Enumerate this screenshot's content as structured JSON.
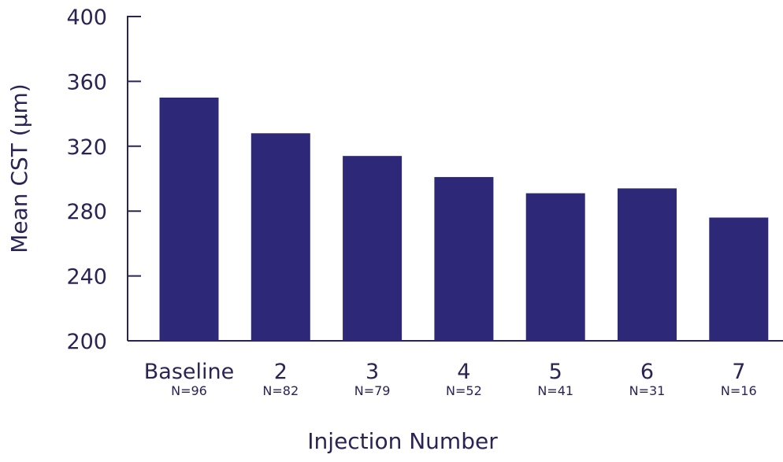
{
  "colors": {
    "bar": "#2e2878",
    "axis": "#2a2455",
    "text": "#2a2455"
  },
  "chart_data": {
    "type": "bar",
    "title": "",
    "xlabel": "Injection Number",
    "ylabel": "Mean CST (µm)",
    "ylim": [
      200,
      400
    ],
    "yticks": [
      "200",
      "240",
      "280",
      "320",
      "360",
      "400"
    ],
    "categories": [
      "Baseline",
      "2",
      "3",
      "4",
      "5",
      "6",
      "7"
    ],
    "sample_sizes": [
      "N=96",
      "N=82",
      "N=79",
      "N=52",
      "N=41",
      "N=31",
      "N=16"
    ],
    "values": [
      350,
      328,
      314,
      301,
      291,
      294,
      276
    ],
    "grid": false,
    "legend": "none"
  }
}
